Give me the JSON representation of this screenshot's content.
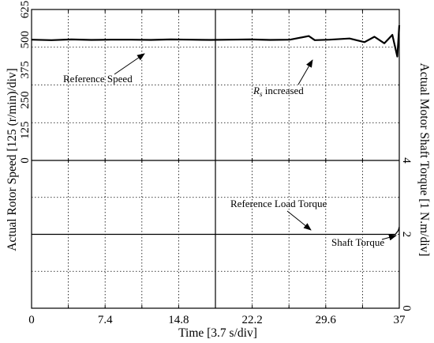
{
  "chart_data": {
    "type": "line",
    "x_axis": {
      "label": "Time [3.7 s/div]",
      "range": [
        0,
        37
      ],
      "ticks": [
        "0",
        "7.4",
        "14.8",
        "22.2",
        "29.6",
        "37"
      ]
    },
    "top_panel": {
      "y_label": "Actual Rotor Speed [125 (r/min)/div]",
      "y_range": [
        0,
        625
      ],
      "y_ticks": [
        "625",
        "500",
        "375",
        "250",
        "125",
        "0"
      ],
      "series": [
        {
          "x": [
            0,
            2,
            4,
            6,
            8,
            10,
            12,
            14,
            16,
            18,
            20,
            22,
            24,
            26,
            27.9,
            28.5,
            30,
            32,
            33.5,
            34.5,
            35.5,
            36.3,
            36.8,
            37
          ],
          "y": [
            500,
            498,
            501,
            499,
            500,
            500,
            499,
            501,
            500,
            499,
            500,
            501,
            499,
            500,
            515,
            498,
            500,
            505,
            490,
            512,
            485,
            520,
            430,
            560
          ]
        }
      ],
      "annotations": [
        {
          "text": "Reference Speed"
        },
        {
          "text": "R",
          "subscript": "s",
          "suffix": " increased"
        }
      ]
    },
    "bottom_panel": {
      "y_label": "Actual Motor Shaft Torque [1 N.m/div]",
      "y_range": [
        0,
        4
      ],
      "y_ticks": [
        "4",
        "2",
        "0"
      ],
      "series": [
        {
          "x": [
            0,
            36.6,
            36.9,
            37
          ],
          "y": [
            2,
            2,
            2.1,
            2.2
          ]
        }
      ],
      "annotations": [
        {
          "text": "Reference Load Torque"
        },
        {
          "text": "Shaft Torque"
        }
      ]
    },
    "grid": true
  }
}
